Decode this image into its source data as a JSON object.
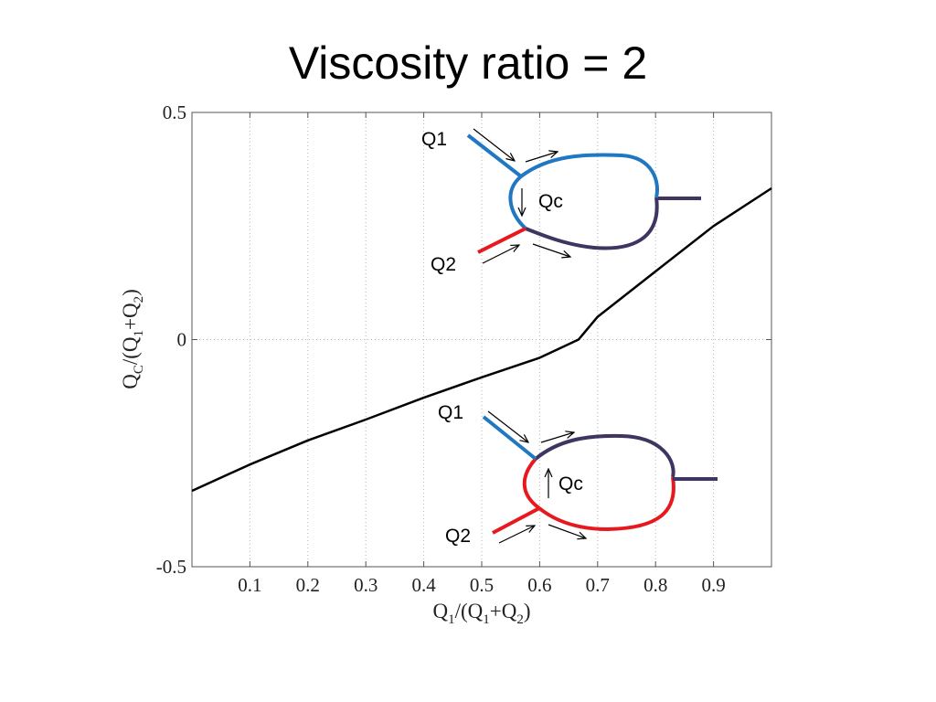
{
  "slide": {
    "title": "Viscosity ratio = 2"
  },
  "chart_data": {
    "type": "line",
    "xlabel": {
      "main": "Q",
      "s1": "1",
      "mid": "/(Q",
      "s2": "1",
      "mid2": "+Q",
      "s3": "2",
      "end": ")"
    },
    "ylabel": {
      "main": "Q",
      "s1": "C",
      "mid": "/(Q",
      "s2": "1",
      "mid2": "+Q",
      "s3": "2",
      "end": ")"
    },
    "xlim": [
      0,
      1
    ],
    "ylim": [
      -0.5,
      0.5
    ],
    "xticks": [
      "0.1",
      "0.2",
      "0.3",
      "0.4",
      "0.5",
      "0.6",
      "0.7",
      "0.8",
      "0.9"
    ],
    "yticks": [
      "0.5",
      "0",
      "-0.5"
    ],
    "grid": "dotted",
    "series": [
      {
        "x": [
          0,
          0.1,
          0.2,
          0.3,
          0.4,
          0.5,
          0.6,
          0.667,
          0.7,
          0.8,
          0.9,
          1.0
        ],
        "y": [
          -0.333,
          -0.275,
          -0.222,
          -0.176,
          -0.128,
          -0.083,
          -0.04,
          0.0,
          0.05,
          0.15,
          0.25,
          0.333
        ],
        "color": "#000000"
      }
    ]
  },
  "annotations": {
    "top": {
      "q1": "Q1",
      "q2": "Q2",
      "qc": "Qc"
    },
    "bottom": {
      "q1": "Q1",
      "q2": "Q2",
      "qc": "Qc"
    },
    "colors": {
      "blue": "#1f78c1",
      "red": "#e8191e",
      "purple": "#3f3560"
    }
  }
}
